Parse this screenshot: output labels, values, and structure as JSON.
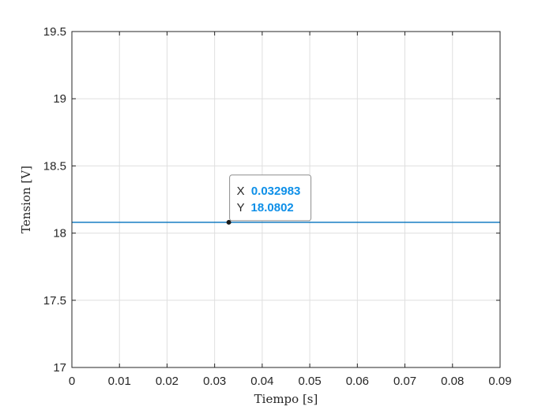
{
  "chart_data": {
    "type": "line",
    "title": "",
    "xlabel": "Tiempo [s]",
    "ylabel": "Tension [V]",
    "xlim": [
      0,
      0.09
    ],
    "ylim": [
      17,
      19.5
    ],
    "xticks": [
      0,
      0.01,
      0.02,
      0.03,
      0.04,
      0.05,
      0.06,
      0.07,
      0.08,
      0.09
    ],
    "xtick_labels": [
      "0",
      "0.01",
      "0.02",
      "0.03",
      "0.04",
      "0.05",
      "0.06",
      "0.07",
      "0.08",
      "0.09"
    ],
    "yticks": [
      17,
      17.5,
      18,
      18.5,
      19,
      19.5
    ],
    "ytick_labels": [
      "17",
      "17.5",
      "18",
      "18.5",
      "19",
      "19.5"
    ],
    "grid": true,
    "series": [
      {
        "color": "#0072bd",
        "x": [
          0,
          0.09
        ],
        "y": [
          18.0802,
          18.0802
        ]
      }
    ],
    "datatip": {
      "x_key": "X",
      "x_value": "0.032983",
      "y_key": "Y",
      "y_value": "18.0802",
      "x": 0.032983,
      "y": 18.0802
    }
  }
}
